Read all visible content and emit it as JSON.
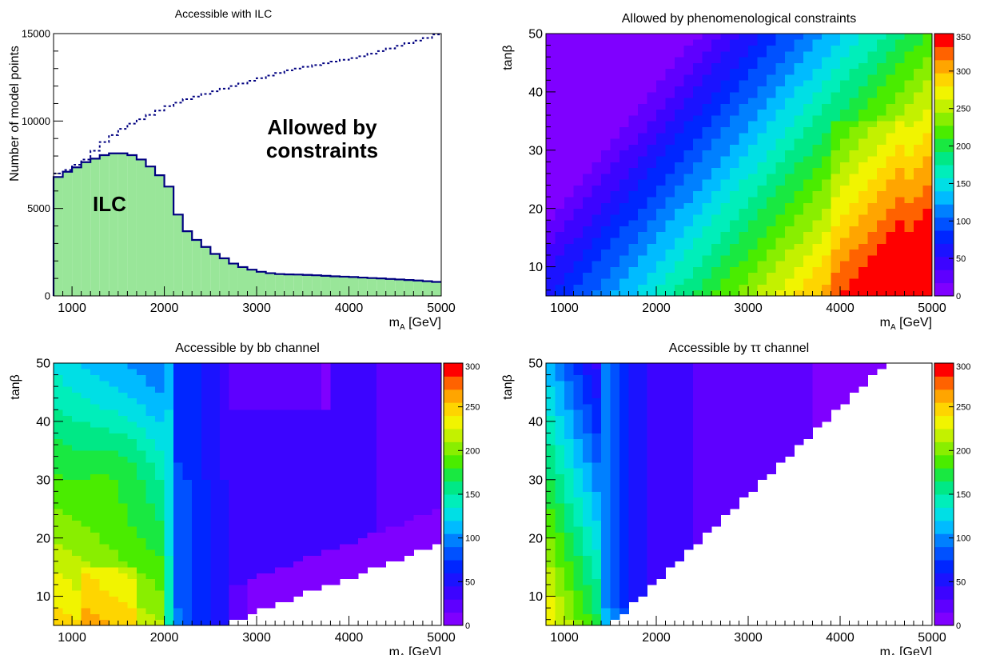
{
  "chart_data": [
    {
      "id": "ilc",
      "type": "area",
      "title": "Accessible with ILC",
      "xlabel_main": "m",
      "xlabel_sub": "A",
      "xlabel_unit": " [GeV]",
      "ylabel": "Number of model points",
      "xlim": [
        800,
        5000
      ],
      "ylim": [
        0,
        15000
      ],
      "xticks": [
        1000,
        2000,
        3000,
        4000,
        5000
      ],
      "yticks": [
        0,
        5000,
        10000,
        15000
      ],
      "bin_width": 100,
      "annotations": [
        "Allowed by",
        "constraints",
        "ILC"
      ],
      "colors": {
        "fill": "#99e699",
        "line": "#000080"
      },
      "series": [
        {
          "kind": "dashed",
          "x": [
            800,
            900,
            1000,
            1100,
            1200,
            1300,
            1400,
            1500,
            1600,
            1700,
            1800,
            1900,
            2000,
            2100,
            2200,
            2300,
            2400,
            2500,
            2600,
            2700,
            2800,
            2900,
            3000,
            3100,
            3200,
            3300,
            3400,
            3500,
            3600,
            3700,
            3800,
            3900,
            4000,
            4100,
            4200,
            4300,
            4400,
            4500,
            4600,
            4700,
            4800,
            4900
          ],
          "values": [
            7000,
            7200,
            7500,
            7800,
            8300,
            8800,
            9200,
            9550,
            9850,
            10100,
            10350,
            10600,
            10850,
            11050,
            11250,
            11400,
            11550,
            11700,
            11850,
            12000,
            12150,
            12300,
            12450,
            12600,
            12750,
            12900,
            13000,
            13100,
            13200,
            13300,
            13400,
            13500,
            13600,
            13700,
            13850,
            14000,
            14150,
            14300,
            14450,
            14600,
            14750,
            14950
          ]
        },
        {
          "kind": "filled",
          "x": [
            800,
            900,
            1000,
            1100,
            1200,
            1300,
            1400,
            1500,
            1600,
            1700,
            1800,
            1900,
            2000,
            2100,
            2200,
            2300,
            2400,
            2500,
            2600,
            2700,
            2800,
            2900,
            3000,
            3100,
            3200,
            3300,
            3400,
            3500,
            3600,
            3700,
            3800,
            3900,
            4000,
            4100,
            4200,
            4300,
            4400,
            4500,
            4600,
            4700,
            4800,
            4900
          ],
          "values": [
            6800,
            7100,
            7350,
            7650,
            7850,
            8050,
            8150,
            8150,
            8050,
            7800,
            7400,
            6900,
            6250,
            4650,
            3700,
            3200,
            2800,
            2400,
            2150,
            1850,
            1650,
            1500,
            1380,
            1300,
            1250,
            1230,
            1220,
            1200,
            1180,
            1150,
            1120,
            1100,
            1080,
            1050,
            1020,
            1000,
            970,
            940,
            910,
            880,
            840,
            800
          ]
        }
      ]
    },
    {
      "id": "constraints",
      "type": "heatmap",
      "title": "Allowed by phenomenological constraints",
      "xlabel_main": "m",
      "xlabel_sub": "A",
      "xlabel_unit": " [GeV]",
      "ylabel": "tanβ",
      "xlim": [
        800,
        5000
      ],
      "ylim": [
        5,
        50
      ],
      "xticks": [
        1000,
        2000,
        3000,
        4000,
        5000
      ],
      "yticks": [
        10,
        20,
        30,
        40,
        50
      ],
      "zlim": [
        0,
        350
      ],
      "zticks": [
        0,
        50,
        100,
        150,
        200,
        250,
        300,
        350
      ],
      "levels": 20,
      "grid": {
        "nx": 42,
        "ny": 45,
        "dx": 100,
        "dy": 1
      },
      "model": "constraints"
    },
    {
      "id": "bb",
      "type": "heatmap",
      "title": "Accessible by bb channel",
      "xlabel_main": "m",
      "xlabel_sub": "A",
      "xlabel_unit": " [GeV]",
      "ylabel": "tanβ",
      "xlim": [
        800,
        5000
      ],
      "ylim": [
        5,
        50
      ],
      "xticks": [
        1000,
        2000,
        3000,
        4000,
        5000
      ],
      "yticks": [
        10,
        20,
        30,
        40,
        50
      ],
      "zlim": [
        0,
        300
      ],
      "zticks": [
        0,
        50,
        100,
        150,
        200,
        250,
        300
      ],
      "levels": 20,
      "grid": {
        "nx": 42,
        "ny": 45,
        "dx": 100,
        "dy": 1
      },
      "model": "bb"
    },
    {
      "id": "tautau",
      "type": "heatmap",
      "title": "Accessible by ττ channel",
      "xlabel_main": "m",
      "xlabel_sub": "A",
      "xlabel_unit": " [GeV]",
      "ylabel": "tanβ",
      "xlim": [
        800,
        5000
      ],
      "ylim": [
        5,
        50
      ],
      "xticks": [
        1000,
        2000,
        3000,
        4000,
        5000
      ],
      "yticks": [
        10,
        20,
        30,
        40,
        50
      ],
      "zlim": [
        0,
        300
      ],
      "zticks": [
        0,
        50,
        100,
        150,
        200,
        250,
        300
      ],
      "levels": 20,
      "grid": {
        "nx": 42,
        "ny": 45,
        "dx": 100,
        "dy": 1
      },
      "model": "tautau"
    }
  ]
}
